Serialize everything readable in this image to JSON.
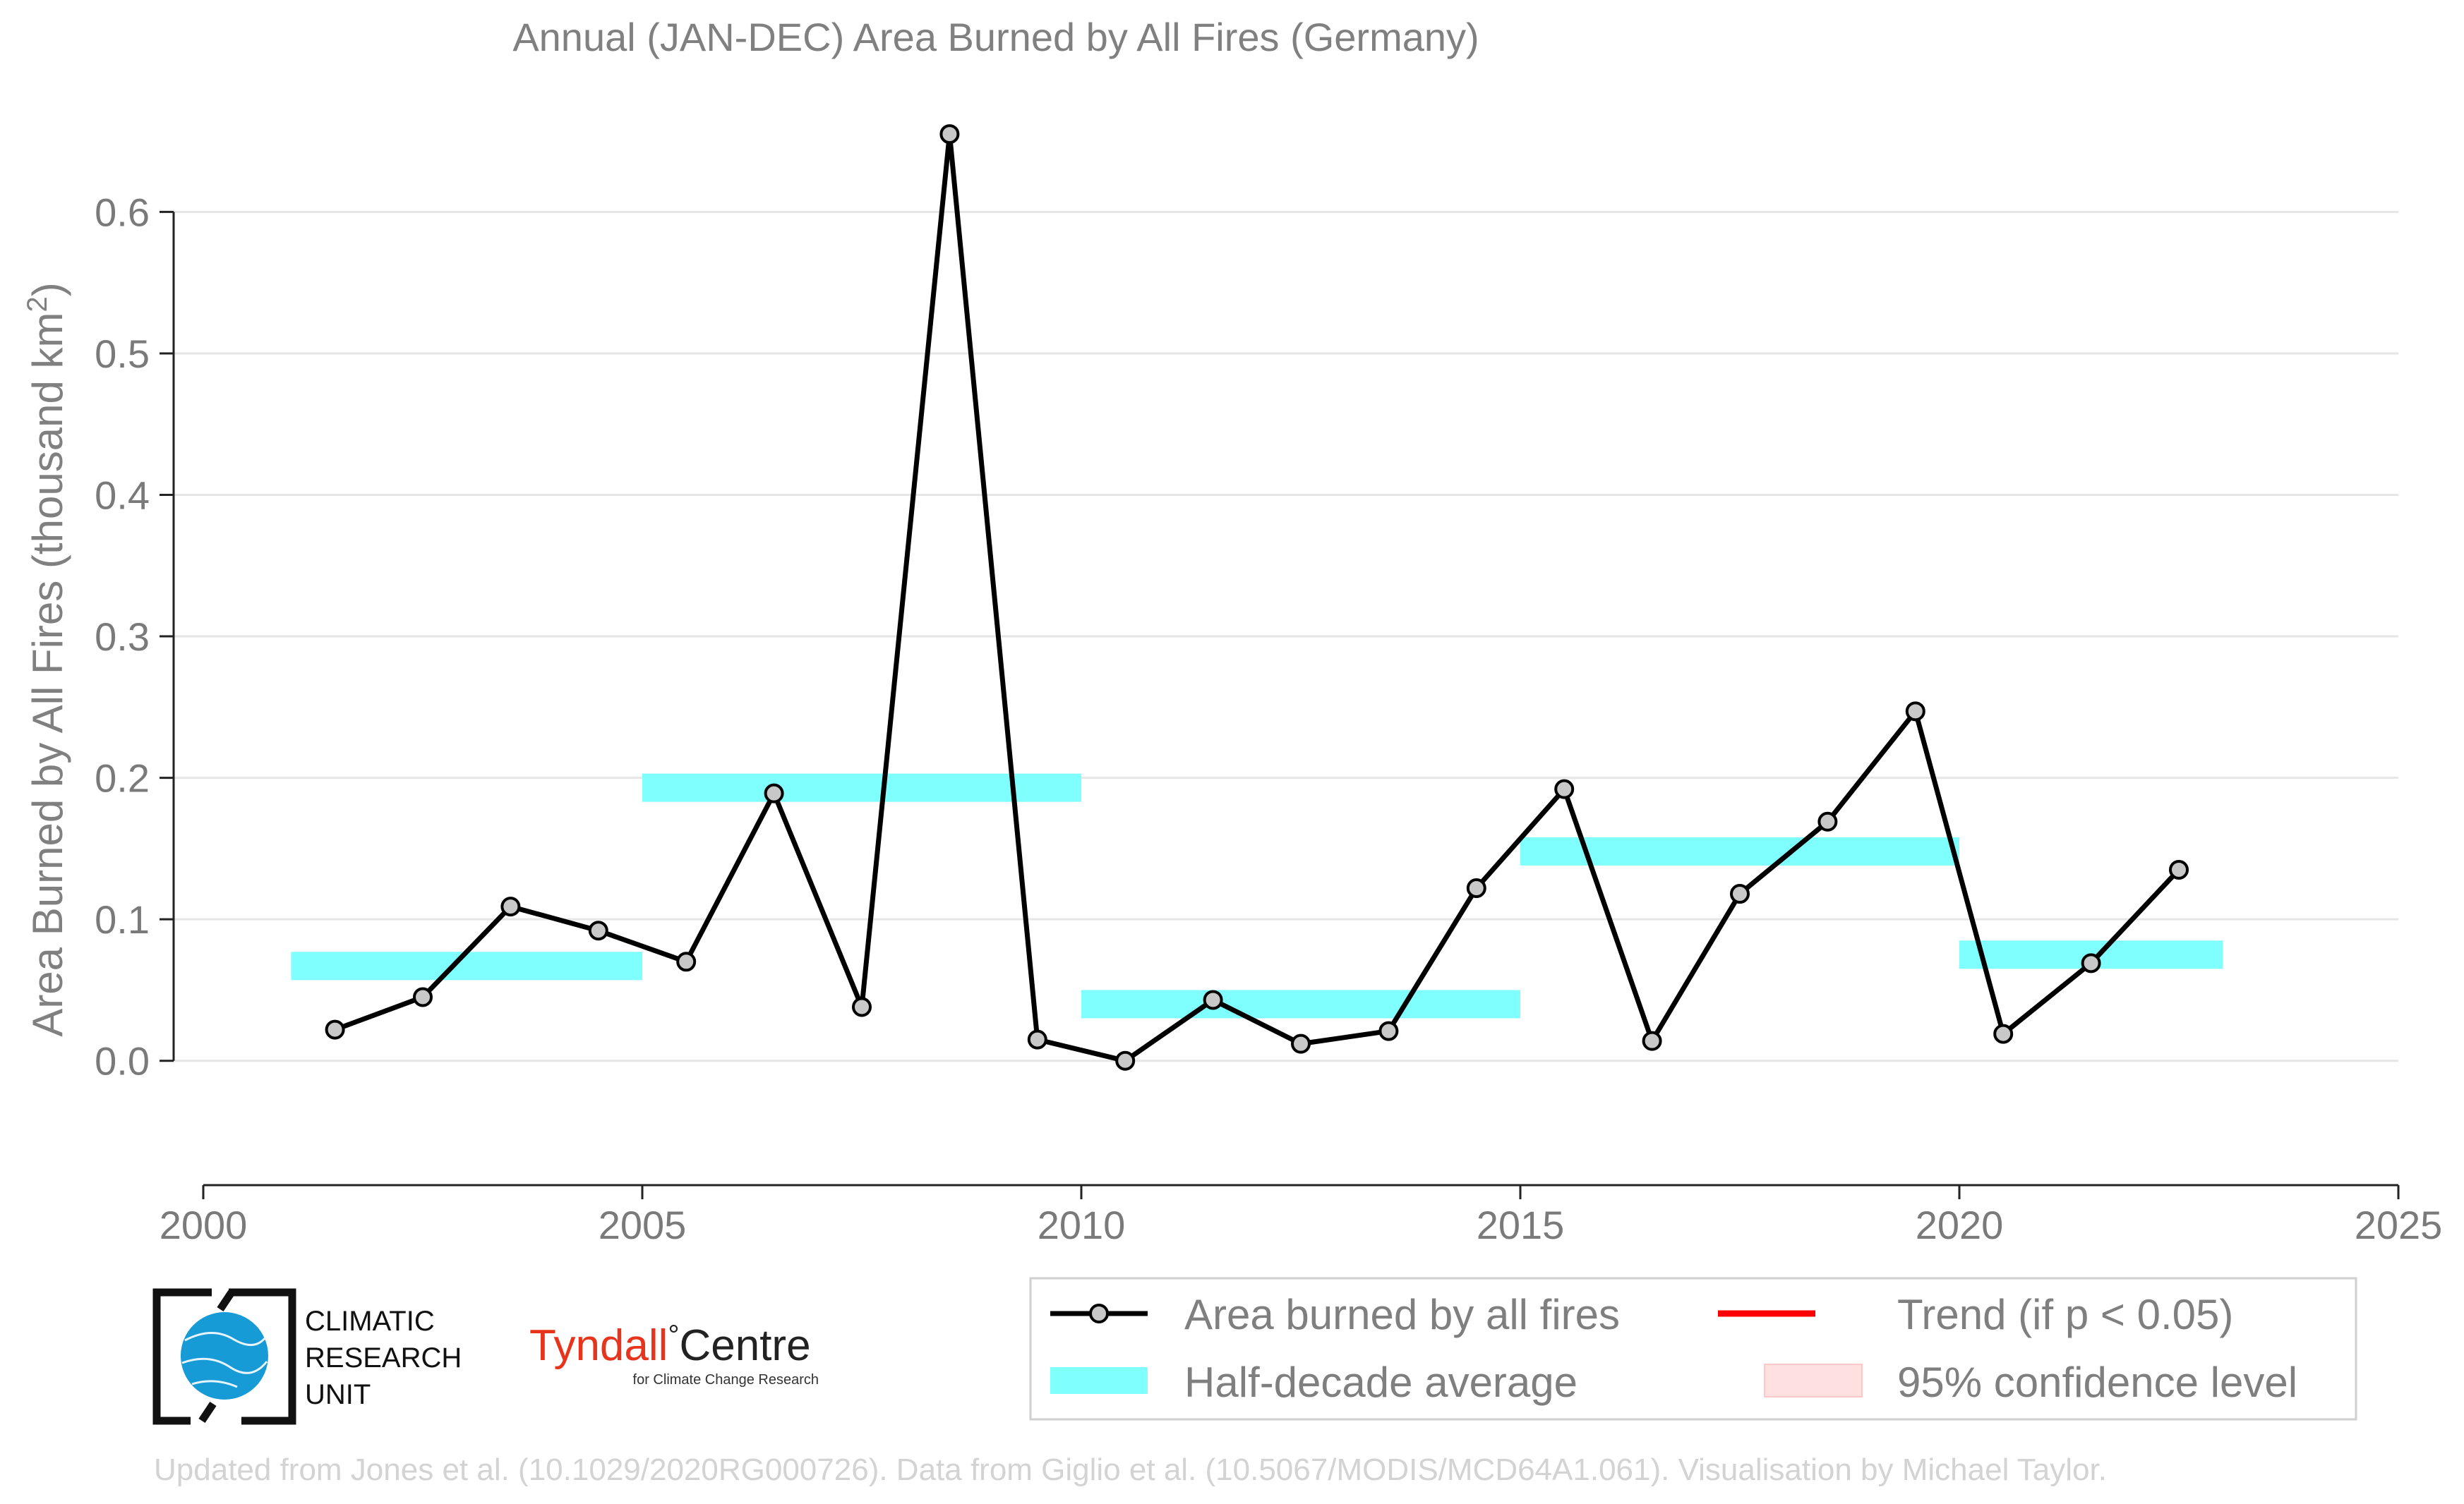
{
  "chart_data": {
    "type": "line",
    "title": "Annual (JAN-DEC) Area Burned by All Fires (Germany)",
    "ylabel": "Area Burned by All Fires (thousand km",
    "ylabel_sup": "2",
    "ylabel_close": ")",
    "xlim": [
      2000,
      2025
    ],
    "ylim": [
      -0.055,
      0.67
    ],
    "xticks": [
      2000,
      2005,
      2010,
      2015,
      2020,
      2025
    ],
    "xtick_labels": [
      "2000",
      "2005",
      "2010",
      "2015",
      "2020",
      "2025"
    ],
    "yticks": [
      0.0,
      0.1,
      0.2,
      0.3,
      0.4,
      0.5,
      0.6
    ],
    "ytick_labels": [
      "0.0",
      "0.1",
      "0.2",
      "0.3",
      "0.4",
      "0.5",
      "0.6"
    ],
    "grid": "horizontal",
    "series": [
      {
        "name": "Area burned by all fires",
        "color": "#000000",
        "marker_fill": "#c8c8c8",
        "x": [
          2001.5,
          2002.5,
          2003.5,
          2004.5,
          2005.5,
          2006.5,
          2007.5,
          2008.5,
          2009.5,
          2010.5,
          2011.5,
          2012.5,
          2013.5,
          2014.5,
          2015.5,
          2016.5,
          2017.5,
          2018.5,
          2019.5,
          2020.5,
          2021.5,
          2022.5
        ],
        "y": [
          0.022,
          0.045,
          0.109,
          0.092,
          0.07,
          0.189,
          0.038,
          0.655,
          0.015,
          0.0,
          0.043,
          0.012,
          0.021,
          0.122,
          0.192,
          0.014,
          0.118,
          0.169,
          0.247,
          0.019,
          0.069,
          0.135
        ]
      }
    ],
    "half_decade_average": {
      "name": "Half-decade average",
      "color": "#80ffff",
      "segments": [
        {
          "x0": 2001,
          "x1": 2005,
          "y": 0.067
        },
        {
          "x0": 2005,
          "x1": 2010,
          "y": 0.193
        },
        {
          "x0": 2010,
          "x1": 2015,
          "y": 0.04
        },
        {
          "x0": 2015,
          "x1": 2020,
          "y": 0.148
        },
        {
          "x0": 2020,
          "x1": 2023,
          "y": 0.075
        }
      ]
    },
    "legend": {
      "placement": "bottom-right",
      "entries": [
        {
          "label": "Area burned by all fires",
          "kind": "line-marker",
          "color": "#000000"
        },
        {
          "label": "Trend (if p < 0.05)",
          "kind": "line",
          "color": "#ff0000"
        },
        {
          "label": "Half-decade average",
          "kind": "band",
          "color": "#80ffff"
        },
        {
          "label": "95% confidence level",
          "kind": "band",
          "color": "#ffe0e0"
        }
      ]
    }
  },
  "logos": {
    "cru_lines": [
      "CLIMATIC",
      "RESEARCH",
      "UNIT"
    ],
    "tyndall_main": "Tyndall",
    "tyndall_degree": "°",
    "tyndall_centre": "Centre",
    "tyndall_sub": "for Climate Change Research"
  },
  "credit": "Updated from Jones et al. (10.1029/2020RG000726). Data from Giglio et al. (10.5067/MODIS/MCD64A1.061). Visualisation by Michael Taylor."
}
